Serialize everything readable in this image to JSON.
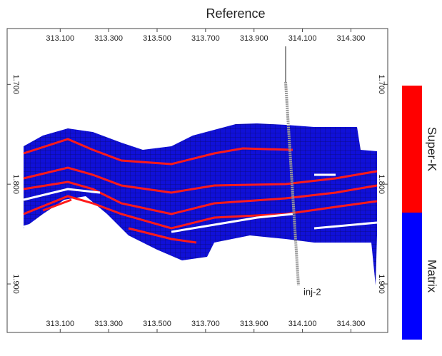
{
  "chart_data": {
    "type": "section",
    "title": "Reference",
    "xlim": [
      312.881,
      314.452
    ],
    "xticks": [
      {
        "value": 313.1,
        "label": "313.100"
      },
      {
        "value": 313.3,
        "label": "313.300"
      },
      {
        "value": 313.5,
        "label": "313.500"
      },
      {
        "value": 313.7,
        "label": "313.700"
      },
      {
        "value": 313.9,
        "label": "313.900"
      },
      {
        "value": 314.1,
        "label": "314.100"
      },
      {
        "value": 314.3,
        "label": "314.300"
      }
    ],
    "ylim": [
      1.644,
      1.9486
    ],
    "yticks": [
      {
        "value": 1.7,
        "label": "1.700"
      },
      {
        "value": 1.8,
        "label": "1.800"
      },
      {
        "value": 1.9,
        "label": "1.900"
      }
    ],
    "legend_items": [
      {
        "name": "Super-K",
        "color": "#ff0000"
      },
      {
        "name": "Matrix",
        "color": "#0000ff"
      }
    ],
    "annotations": [
      "inj-2"
    ]
  }
}
